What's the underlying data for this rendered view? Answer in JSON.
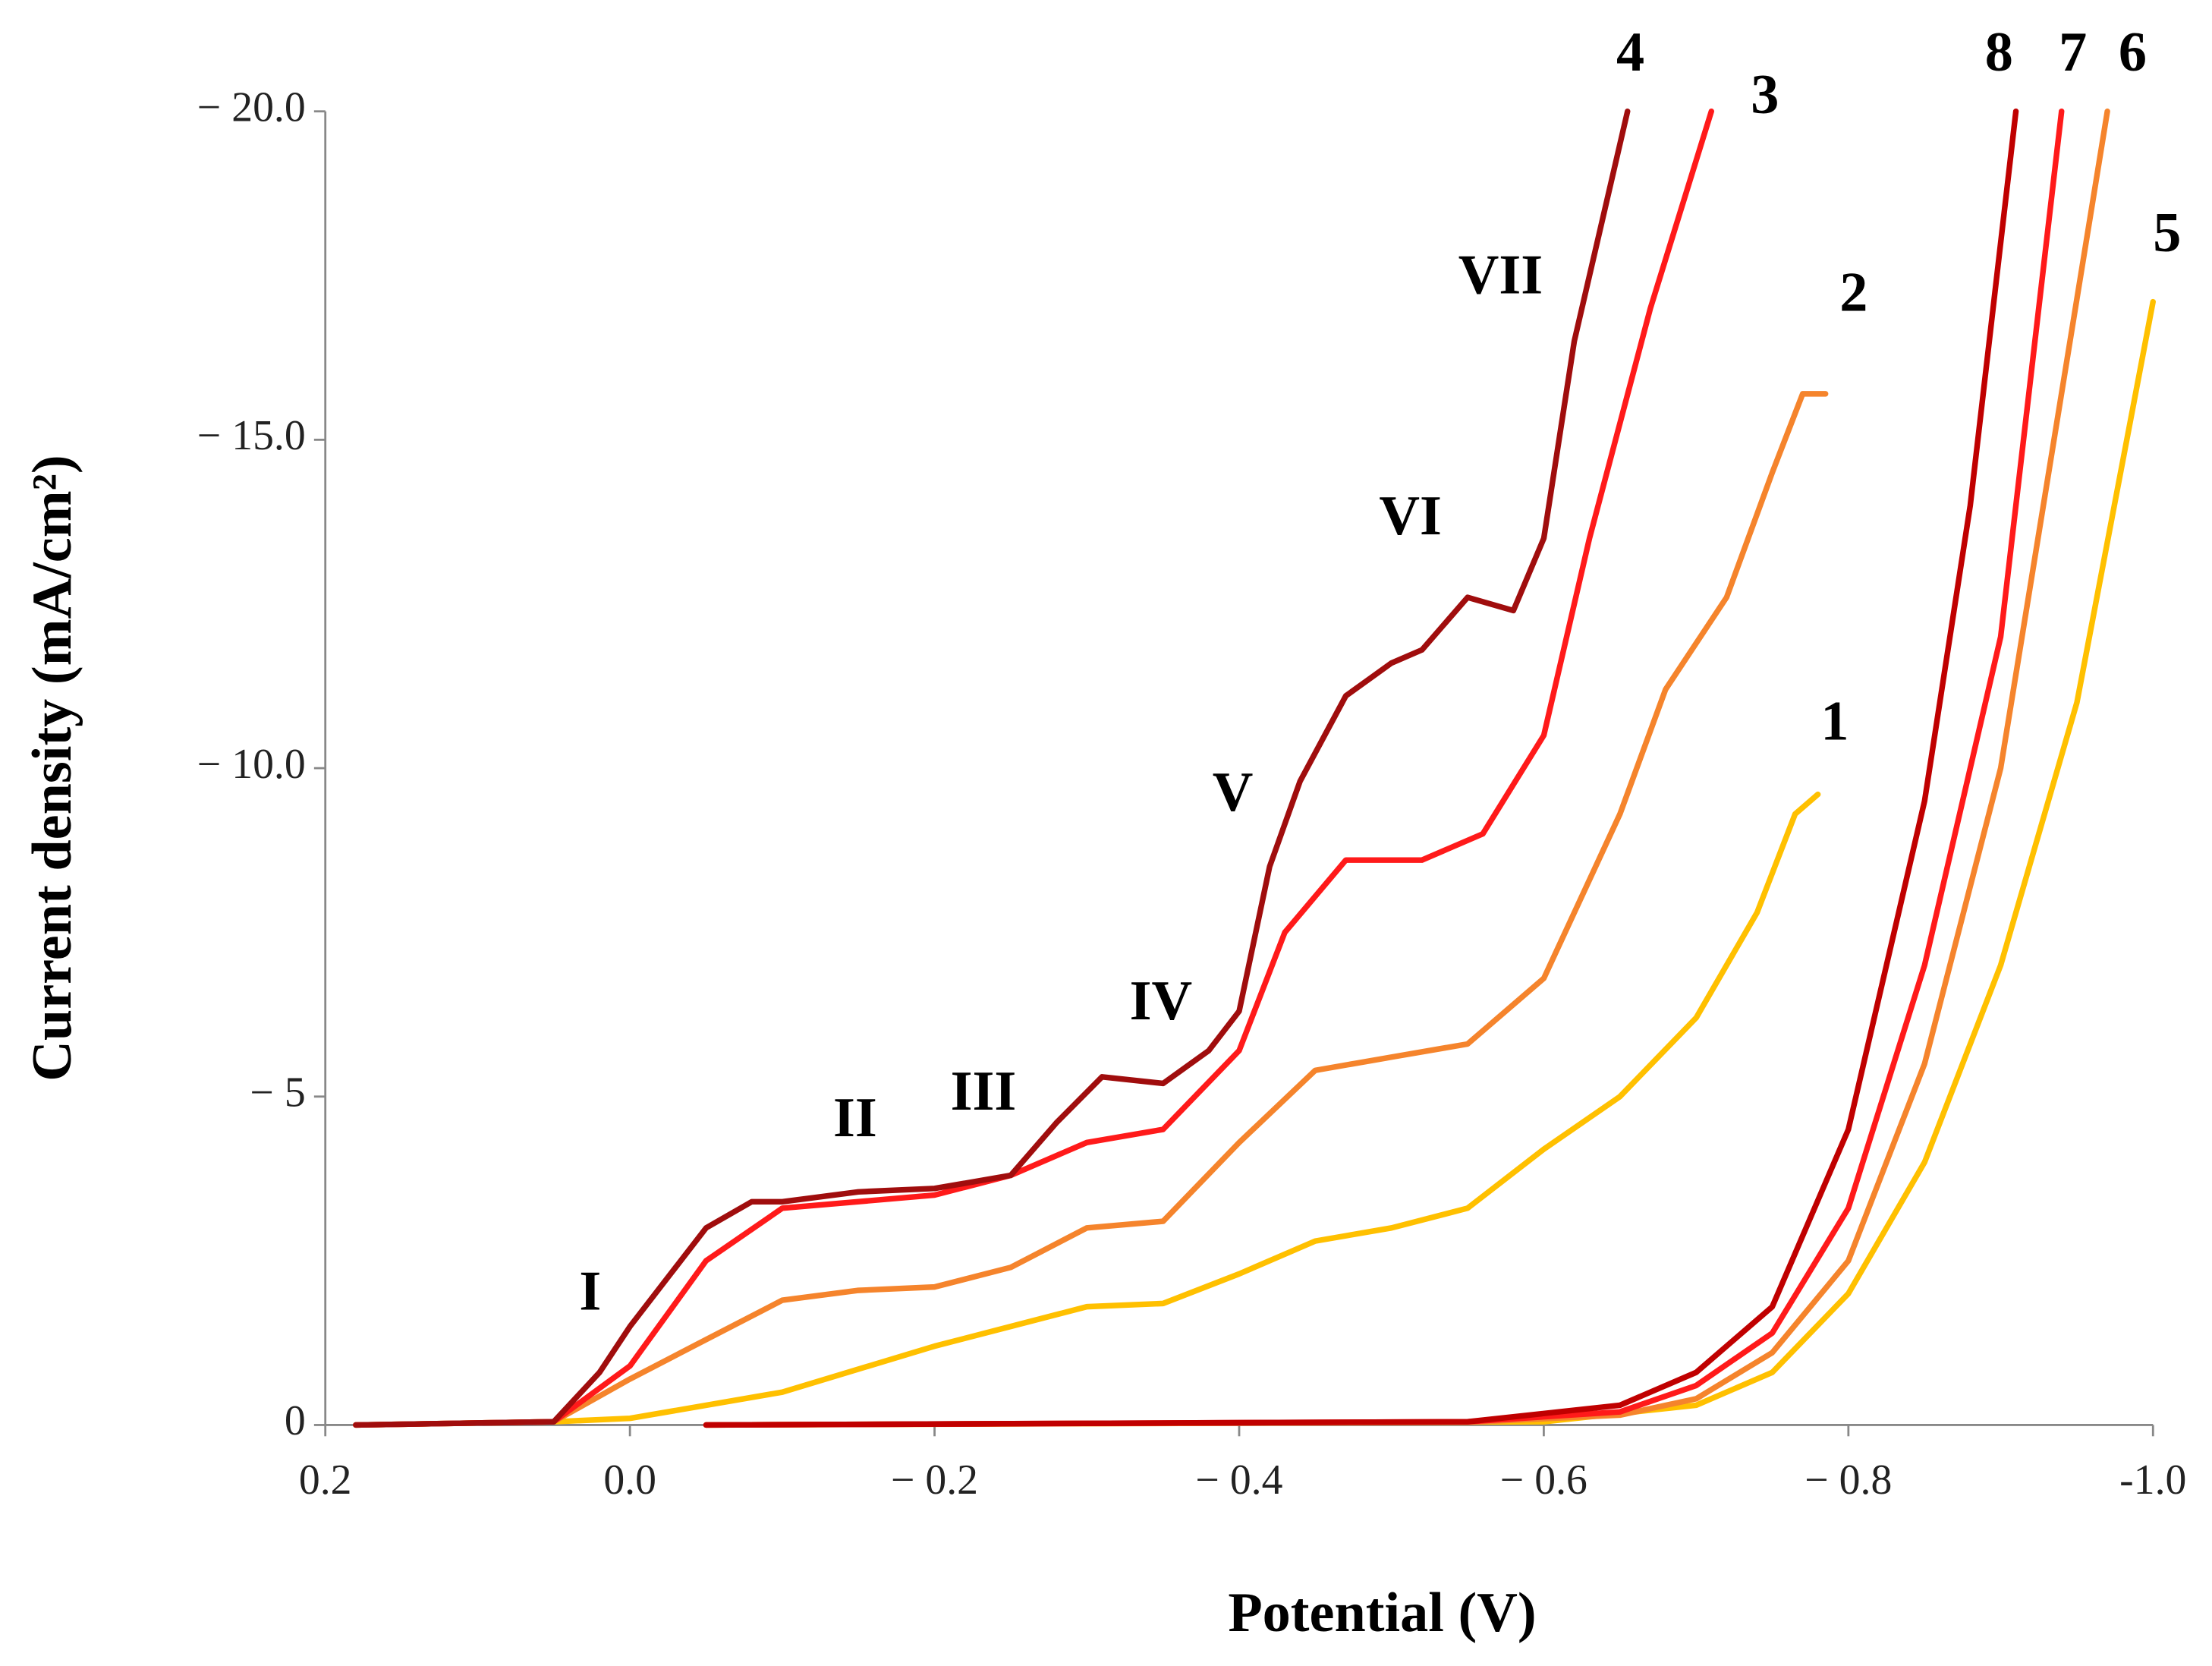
{
  "chart_data": {
    "type": "line",
    "x_label": "Potential (V)",
    "y_label": "Current density (mA/cm²)",
    "xlim": [
      0.2,
      -1.0
    ],
    "xticks": [
      0.2,
      {
        "value": 0,
        "label": "0.0"
      },
      {
        "value": -0.2,
        "label": "− 0.2"
      },
      {
        "value": -0.4,
        "label": "− 0.4"
      },
      {
        "value": -0.6,
        "label": "− 0.6"
      },
      {
        "value": -0.8,
        "label": "− 0.8"
      },
      {
        "value": -1.0,
        "label": "-1.0"
      }
    ],
    "ylim": [
      0,
      -20
    ],
    "yticks": [
      0,
      {
        "value": -5,
        "label": "− 5"
      },
      {
        "value": -10,
        "label": "− 10.0"
      },
      {
        "value": -15,
        "label": "− 15.0"
      },
      {
        "value": -20,
        "label": "− 20.0"
      }
    ],
    "grid": false,
    "annotations": [
      "I",
      "II",
      "III",
      "IV",
      "V",
      "VI",
      "VII"
    ],
    "series": [
      {
        "name": "1",
        "color": "#ffc000",
        "x": [
          0.18,
          0.05,
          0,
          -0.1,
          -0.2,
          -0.25,
          -0.3,
          -0.35,
          -0.4,
          -0.45,
          -0.5,
          -0.55,
          -0.6,
          -0.65,
          -0.7,
          -0.74,
          -0.765,
          -0.78
        ],
        "values": [
          0,
          -0.05,
          -0.1,
          -0.5,
          -1.2,
          -1.5,
          -1.8,
          -1.85,
          -2.3,
          -2.8,
          -3.0,
          -3.3,
          -4.2,
          -5.0,
          -6.2,
          -7.8,
          -9.3,
          -9.6
        ]
      },
      {
        "name": "2",
        "color": "#f5842c",
        "x": [
          0.18,
          0.05,
          0,
          -0.05,
          -0.1,
          -0.15,
          -0.2,
          -0.25,
          -0.3,
          -0.35,
          -0.4,
          -0.45,
          -0.5,
          -0.55,
          -0.6,
          -0.65,
          -0.68,
          -0.72,
          -0.75,
          -0.77,
          -0.785
        ],
        "values": [
          0,
          -0.05,
          -0.7,
          -1.3,
          -1.9,
          -2.05,
          -2.1,
          -2.4,
          -3.0,
          -3.1,
          -4.3,
          -5.4,
          -5.6,
          -5.8,
          -6.8,
          -9.3,
          -11.2,
          -12.6,
          -14.5,
          -15.7,
          -15.7
        ]
      },
      {
        "name": "3",
        "color": "#ff1a1a",
        "x": [
          0.18,
          0.05,
          0,
          -0.05,
          -0.1,
          -0.2,
          -0.25,
          -0.3,
          -0.35,
          -0.4,
          -0.43,
          -0.47,
          -0.52,
          -0.56,
          -0.6,
          -0.63,
          -0.67,
          -0.71
        ],
        "values": [
          0,
          -0.05,
          -0.9,
          -2.5,
          -3.3,
          -3.5,
          -3.8,
          -4.3,
          -4.5,
          -5.7,
          -7.5,
          -8.6,
          -8.6,
          -9.0,
          -10.5,
          -13.5,
          -17.0,
          -20
        ]
      },
      {
        "name": "4",
        "color": "#a00d0d",
        "x": [
          0.18,
          0.05,
          0.02,
          0,
          -0.05,
          -0.08,
          -0.1,
          -0.15,
          -0.2,
          -0.25,
          -0.28,
          -0.31,
          -0.35,
          -0.38,
          -0.4,
          -0.42,
          -0.44,
          -0.47,
          -0.5,
          -0.52,
          -0.55,
          -0.58,
          -0.6,
          -0.62,
          -0.64,
          -0.655
        ],
        "values": [
          0,
          -0.05,
          -0.8,
          -1.5,
          -3.0,
          -3.4,
          -3.4,
          -3.55,
          -3.6,
          -3.8,
          -4.6,
          -5.3,
          -5.2,
          -5.7,
          -6.3,
          -8.5,
          -9.8,
          -11.1,
          -11.6,
          -11.8,
          -12.6,
          -12.4,
          -13.5,
          -16.5,
          -18.5,
          -20
        ]
      },
      {
        "name": "5",
        "color": "#ffc000",
        "x": [
          -0.05,
          -0.6,
          -0.7,
          -0.75,
          -0.8,
          -0.85,
          -0.9,
          -0.95,
          -1.0
        ],
        "values": [
          0,
          -0.05,
          -0.3,
          -0.8,
          -2,
          -4,
          -7,
          -11,
          -17.1
        ]
      },
      {
        "name": "6",
        "color": "#f5842c",
        "x": [
          -0.05,
          -0.55,
          -0.65,
          -0.7,
          -0.75,
          -0.8,
          -0.85,
          -0.9,
          -0.97
        ],
        "values": [
          0,
          -0.04,
          -0.15,
          -0.4,
          -1.1,
          -2.5,
          -5.5,
          -10,
          -20
        ]
      },
      {
        "name": "7",
        "color": "#ff1a1a",
        "x": [
          -0.05,
          -0.55,
          -0.65,
          -0.7,
          -0.75,
          -0.8,
          -0.85,
          -0.9,
          -0.94
        ],
        "values": [
          0,
          -0.05,
          -0.2,
          -0.6,
          -1.4,
          -3.3,
          -7,
          -12,
          -20
        ]
      },
      {
        "name": "8",
        "color": "#c00000",
        "x": [
          -0.05,
          -0.55,
          -0.65,
          -0.7,
          -0.75,
          -0.8,
          -0.85,
          -0.88,
          -0.91
        ],
        "values": [
          0,
          -0.05,
          -0.3,
          -0.8,
          -1.8,
          -4.5,
          -9.5,
          -14,
          -20
        ]
      }
    ]
  }
}
